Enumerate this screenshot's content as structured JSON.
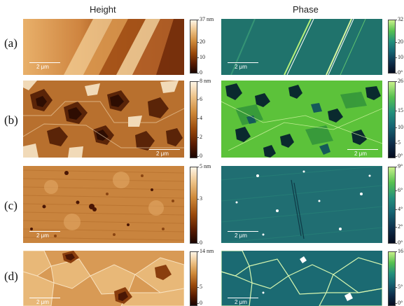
{
  "columns": {
    "height": "Height",
    "phase": "Phase"
  },
  "rows": [
    {
      "label": "(a)",
      "height": {
        "scalebar": "2 μm",
        "colorbar": {
          "unit": "nm",
          "ticks": [
            "37 nm",
            "20",
            "10",
            "0"
          ]
        }
      },
      "phase": {
        "scalebar": "2 μm",
        "colorbar": {
          "unit": "°",
          "ticks": [
            "32",
            "20",
            "10",
            "0°"
          ]
        }
      }
    },
    {
      "label": "(b)",
      "height": {
        "scalebar": "2 μm",
        "colorbar": {
          "unit": "nm",
          "ticks": [
            "8 nm",
            "6",
            "4",
            "2",
            "0"
          ]
        }
      },
      "phase": {
        "scalebar": "2 μm",
        "colorbar": {
          "unit": "°",
          "ticks": [
            "26",
            "15",
            "10",
            "5",
            "0°"
          ]
        }
      }
    },
    {
      "label": "(c)",
      "height": {
        "scalebar": "2 μm",
        "colorbar": {
          "unit": "nm",
          "ticks": [
            "5 nm",
            "3",
            "0"
          ]
        }
      },
      "phase": {
        "scalebar": "2 μm",
        "colorbar": {
          "unit": "°",
          "ticks": [
            "9°",
            "6°",
            "4°",
            "2°",
            "0°"
          ]
        }
      }
    },
    {
      "label": "(d)",
      "height": {
        "scalebar": "2 μm",
        "colorbar": {
          "unit": "nm",
          "ticks": [
            "14 nm",
            "5",
            "0"
          ]
        }
      },
      "phase": {
        "scalebar": "2 μm",
        "colorbar": {
          "unit": "°",
          "ticks": [
            "16",
            "5°",
            "0°"
          ]
        }
      }
    }
  ],
  "colors": {
    "height_map": [
      "#1a0500",
      "#9a4a0c",
      "#ecc186",
      "#fff5e6"
    ],
    "phase_map": [
      "#050b1e",
      "#166673",
      "#56c150",
      "#c8f08a"
    ]
  }
}
